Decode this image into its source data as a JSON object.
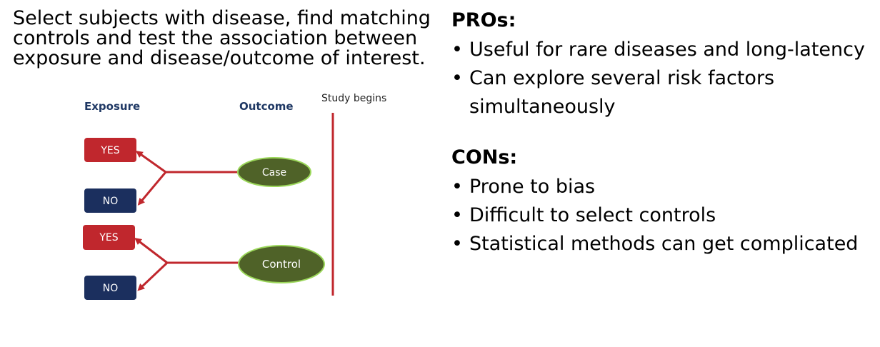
{
  "intro": {
    "lines": [
      "Select subjects with disease, find matching",
      "controls and test the association between",
      "exposure and disease/outcome of interest."
    ]
  },
  "diagram": {
    "exposure_heading": "Exposure",
    "outcome_heading": "Outcome",
    "study_begins_label": "Study begins",
    "yes_label": "YES",
    "no_label": "NO",
    "case_label": "Case",
    "control_label": "Control",
    "colors": {
      "yes_box": "#c0272d",
      "no_box": "#1b2f5e",
      "outcome_ellipse": "#4f6228",
      "ellipse_border": "#9bd75a",
      "arrow": "#c0272d",
      "heading": "#1f3864"
    }
  },
  "pros": {
    "heading": "PROs:",
    "items": [
      "Useful for rare diseases and long-latency",
      "Can explore several risk factors simultaneously"
    ]
  },
  "cons": {
    "heading": "CONs:",
    "items": [
      "Prone to bias",
      "Difficult to select controls",
      "Statistical methods can get complicated"
    ]
  },
  "bullet_char": "•"
}
